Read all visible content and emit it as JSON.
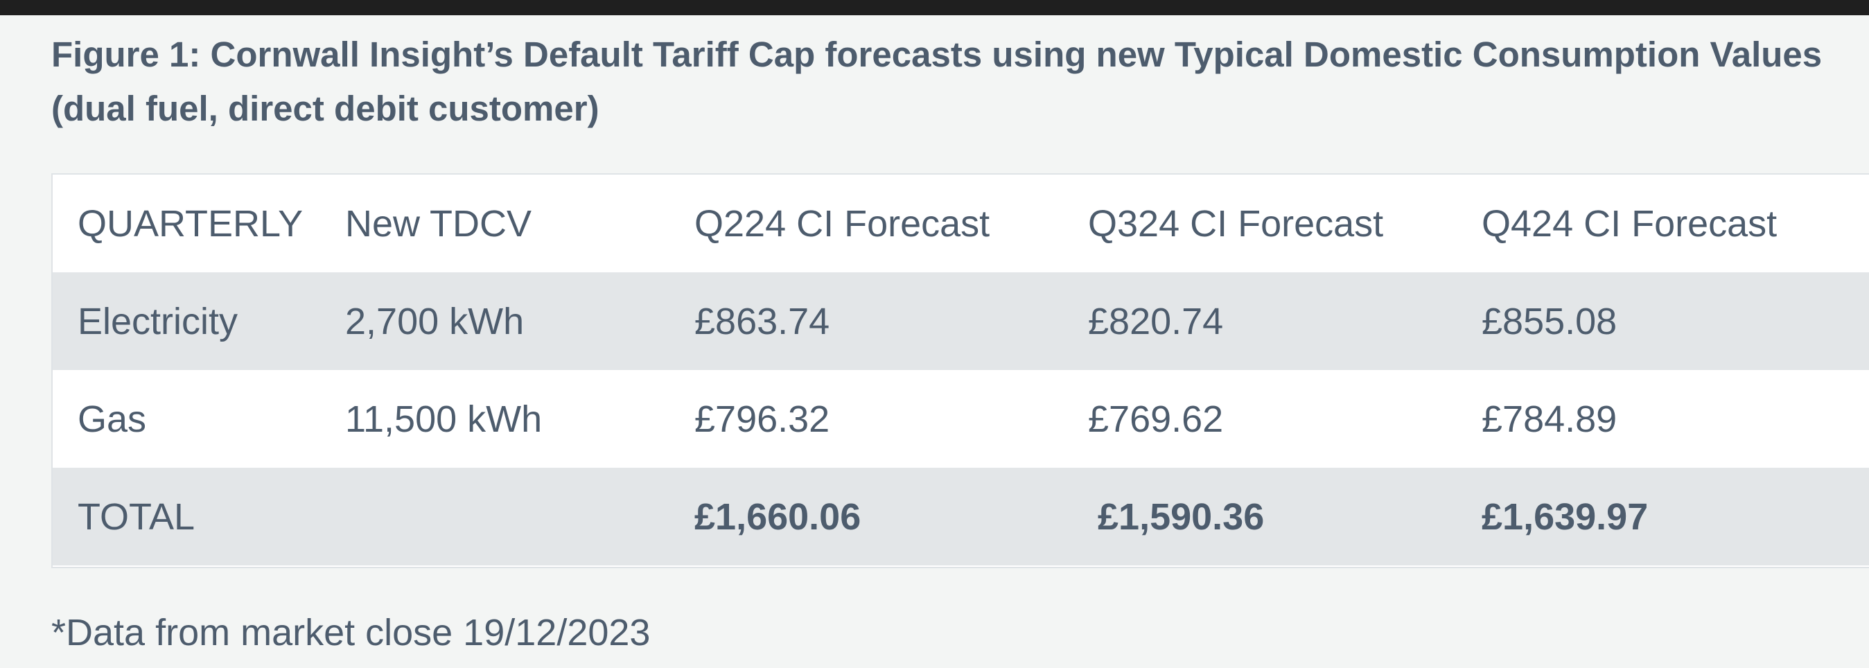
{
  "figure": {
    "caption": "Figure 1: Cornwall Insight’s Default Tariff Cap forecasts using new Typical Domestic Consumption Values (dual fuel, direct debit customer)"
  },
  "table": {
    "header": {
      "c0": "QUARTERLY",
      "c1": "New TDCV",
      "c2": "Q224 CI Forecast",
      "c3": "Q324 CI Forecast",
      "c4": "Q424 CI Forecast"
    },
    "electricity": {
      "c0": "Electricity",
      "c1": "2,700 kWh",
      "c2": "£863.74",
      "c3": "£820.74",
      "c4": "£855.08"
    },
    "gas": {
      "c0": "Gas",
      "c1": "11,500 kWh",
      "c2": "£796.32",
      "c3": "£769.62",
      "c4": "£784.89"
    },
    "total": {
      "c0": "TOTAL",
      "c1": "",
      "c2": "£1,660.06",
      "c3": "£1,590.36",
      "c4": "£1,639.97"
    }
  },
  "footnote": "*Data from market close 19/12/2023",
  "colors": {
    "text": "#4d5c6d",
    "page_background": "#f3f5f4",
    "shaded_row": "#e3e6e8",
    "top_bar": "#1f1f1f"
  }
}
